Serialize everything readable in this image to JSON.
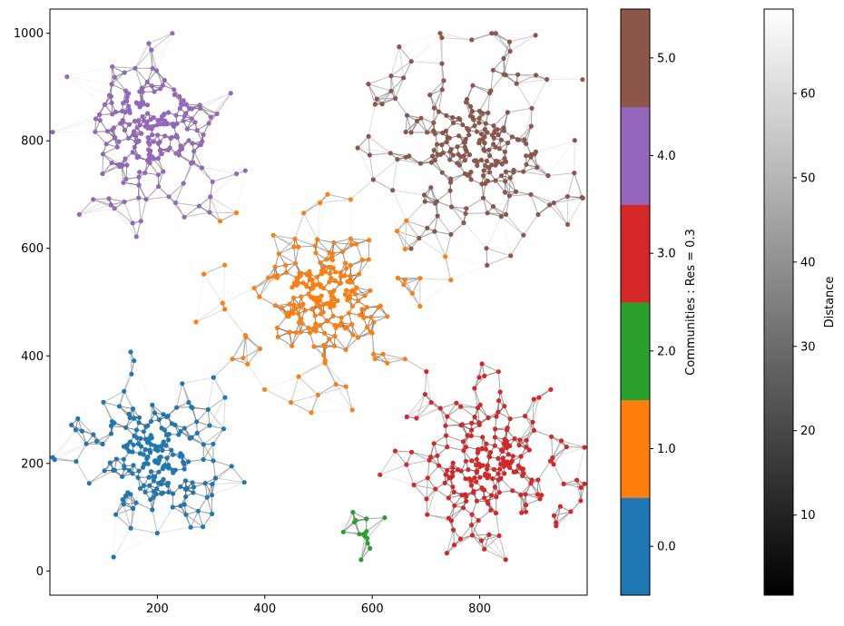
{
  "chart_data": {
    "type": "scatter",
    "subtype": "network-graph",
    "xlim": [
      0,
      1000
    ],
    "ylim": [
      -45,
      1045
    ],
    "x_ticks": [
      200,
      400,
      600,
      800
    ],
    "y_ticks": [
      0,
      200,
      400,
      600,
      800,
      1000
    ],
    "communities": [
      {
        "id": 0,
        "color": "#1f77b4",
        "center": [
          200,
          210
        ],
        "spread": 62,
        "core_nodes": 170,
        "outer_nodes": 45,
        "outer_spread": 150
      },
      {
        "id": 1,
        "color": "#ff7f0e",
        "center": [
          510,
          505
        ],
        "spread": 58,
        "core_nodes": 170,
        "outer_nodes": 75,
        "outer_spread": 190
      },
      {
        "id": 2,
        "color": "#2ca02c",
        "center": [
          575,
          75
        ],
        "spread": 28,
        "core_nodes": 14,
        "outer_nodes": 0,
        "outer_spread": 0
      },
      {
        "id": 3,
        "color": "#d62728",
        "center": [
          810,
          195
        ],
        "spread": 65,
        "core_nodes": 150,
        "outer_nodes": 70,
        "outer_spread": 150
      },
      {
        "id": 4,
        "color": "#9467bd",
        "center": [
          185,
          805
        ],
        "spread": 62,
        "core_nodes": 160,
        "outer_nodes": 55,
        "outer_spread": 160
      },
      {
        "id": 5,
        "color": "#8c564b",
        "center": [
          800,
          790
        ],
        "spread": 65,
        "core_nodes": 140,
        "outer_nodes": 95,
        "outer_spread": 190
      }
    ],
    "community_colorbar": {
      "label": "Communities : Res = 0.3",
      "ticks": [
        "0.0",
        "1.0",
        "2.0",
        "3.0",
        "4.0",
        "5.0"
      ],
      "colors": [
        "#1f77b4",
        "#ff7f0e",
        "#2ca02c",
        "#d62728",
        "#9467bd",
        "#8c564b"
      ]
    },
    "distance_colorbar": {
      "label": "Distance",
      "range": [
        0.5,
        70
      ],
      "ticks": [
        "10",
        "20",
        "30",
        "40",
        "50",
        "60"
      ],
      "tick_values": [
        10,
        20,
        30,
        40,
        50,
        60
      ],
      "colormap": "gray"
    },
    "edge_color_scale": "distance",
    "grid": false,
    "legend": "none"
  }
}
